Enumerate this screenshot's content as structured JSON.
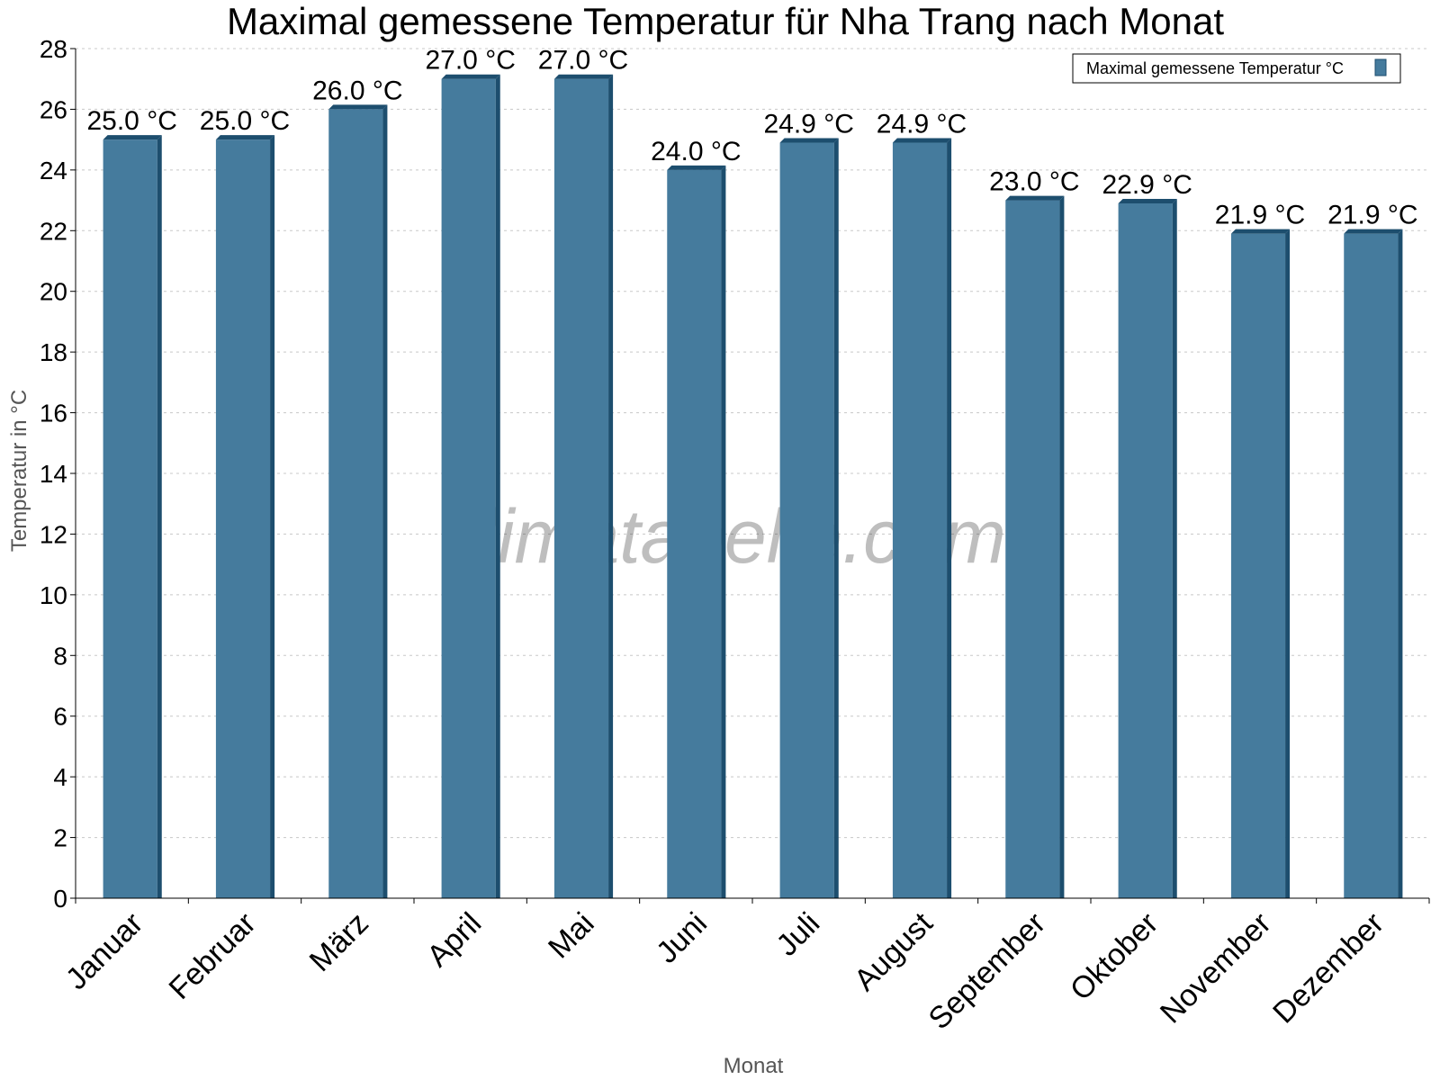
{
  "title": "Maximal gemessene Temperatur für Nha Trang nach Monat",
  "watermark": "klimatabelle.com",
  "colors": {
    "bar": "#457b9d",
    "bar_dark": "#1d4e6e",
    "grid": "#c8c8c8"
  },
  "chart_data": {
    "type": "bar",
    "title": "Maximal gemessene Temperatur für Nha Trang nach Monat",
    "xlabel": "Monat",
    "ylabel": "Temperatur in °C",
    "ylim": [
      0,
      28
    ],
    "yticks": [
      0,
      2,
      4,
      6,
      8,
      10,
      12,
      14,
      16,
      18,
      20,
      22,
      24,
      26,
      28
    ],
    "grid": true,
    "legend": {
      "position": "top-right",
      "entries": [
        "Maximal gemessene Temperatur °C"
      ]
    },
    "categories": [
      "Januar",
      "Februar",
      "März",
      "April",
      "Mai",
      "Juni",
      "Juli",
      "August",
      "September",
      "Oktober",
      "November",
      "Dezember"
    ],
    "series": [
      {
        "name": "Maximal gemessene Temperatur °C",
        "values": [
          25.0,
          25.0,
          26.0,
          27.0,
          27.0,
          24.0,
          24.9,
          24.9,
          23.0,
          22.9,
          21.9,
          21.9
        ],
        "labels": [
          "25.0 °C",
          "25.0 °C",
          "26.0 °C",
          "27.0 °C",
          "27.0 °C",
          "24.0 °C",
          "24.9 °C",
          "24.9 °C",
          "23.0 °C",
          "22.9 °C",
          "21.9 °C",
          "21.9 °C"
        ]
      }
    ]
  }
}
